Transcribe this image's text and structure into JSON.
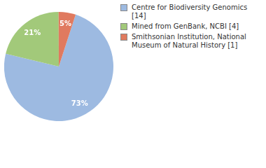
{
  "chart_data": {
    "type": "pie",
    "categories": [
      "Centre for Biodiversity Genomics [14]",
      "Mined from GenBank, NCBI [4]",
      "Smithsonian Institution, National Museum of Natural History [1]"
    ],
    "values": [
      73,
      21,
      5
    ],
    "value_labels": [
      "73%",
      "21%",
      "5%"
    ],
    "colors": [
      "#9dbae1",
      "#a2c97a",
      "#e07a5f"
    ],
    "data_labels": true,
    "legend": "right"
  }
}
